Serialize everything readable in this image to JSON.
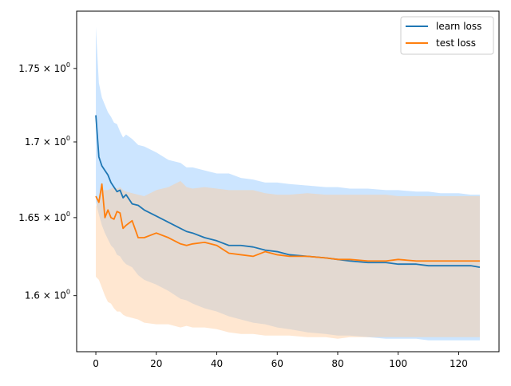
{
  "chart_data": {
    "type": "line",
    "title": "",
    "xlabel": "",
    "ylabel": "",
    "yscale": "log",
    "xlim": [
      -6.35,
      133.35
    ],
    "ylim": [
      1.565,
      1.79
    ],
    "grid": false,
    "legend_position": "top-right",
    "xticks": [
      0,
      20,
      40,
      60,
      80,
      100,
      120
    ],
    "xtick_labels": [
      "0",
      "20",
      "40",
      "60",
      "80",
      "100",
      "120"
    ],
    "yticks": [
      1.6,
      1.65,
      1.7,
      1.75
    ],
    "ytick_labels": [
      {
        "base": "1.6 × 10",
        "exp": "0"
      },
      {
        "base": "1.65 × 10",
        "exp": "0"
      },
      {
        "base": "1.7 × 10",
        "exp": "0"
      },
      {
        "base": "1.75 × 10",
        "exp": "0"
      }
    ],
    "series": [
      {
        "name": "learn loss",
        "color": "#1f77b4",
        "band_color": "#8ec5ff",
        "x": [
          0,
          1,
          2,
          3,
          4,
          5,
          6,
          7,
          8,
          9,
          10,
          12,
          14,
          16,
          20,
          24,
          28,
          30,
          32,
          36,
          40,
          44,
          48,
          52,
          56,
          60,
          64,
          70,
          76,
          80,
          84,
          90,
          96,
          100,
          106,
          110,
          114,
          120,
          124,
          127
        ],
        "values": [
          1.718,
          1.69,
          1.684,
          1.681,
          1.678,
          1.673,
          1.67,
          1.667,
          1.668,
          1.663,
          1.665,
          1.659,
          1.658,
          1.655,
          1.651,
          1.647,
          1.643,
          1.641,
          1.64,
          1.637,
          1.635,
          1.632,
          1.632,
          1.631,
          1.629,
          1.628,
          1.626,
          1.625,
          1.624,
          1.623,
          1.622,
          1.621,
          1.621,
          1.62,
          1.62,
          1.619,
          1.619,
          1.619,
          1.619,
          1.618
        ],
        "upper": [
          1.779,
          1.74,
          1.73,
          1.725,
          1.72,
          1.717,
          1.713,
          1.712,
          1.707,
          1.703,
          1.705,
          1.702,
          1.698,
          1.697,
          1.693,
          1.688,
          1.686,
          1.683,
          1.683,
          1.681,
          1.679,
          1.679,
          1.676,
          1.675,
          1.673,
          1.673,
          1.672,
          1.671,
          1.67,
          1.67,
          1.669,
          1.669,
          1.668,
          1.668,
          1.667,
          1.667,
          1.666,
          1.666,
          1.665,
          1.665
        ],
        "lower": [
          1.66,
          1.652,
          1.645,
          1.64,
          1.636,
          1.632,
          1.63,
          1.626,
          1.625,
          1.622,
          1.62,
          1.618,
          1.613,
          1.61,
          1.607,
          1.603,
          1.598,
          1.597,
          1.595,
          1.592,
          1.59,
          1.587,
          1.585,
          1.583,
          1.582,
          1.58,
          1.579,
          1.577,
          1.576,
          1.575,
          1.575,
          1.574,
          1.573,
          1.573,
          1.573,
          1.572,
          1.572,
          1.572,
          1.572,
          1.572
        ]
      },
      {
        "name": "test loss",
        "color": "#ff7f0e",
        "band_color": "#ffc999",
        "x": [
          0,
          1,
          2,
          3,
          4,
          5,
          6,
          7,
          8,
          9,
          10,
          12,
          14,
          16,
          20,
          24,
          28,
          30,
          32,
          36,
          40,
          44,
          48,
          52,
          56,
          60,
          64,
          70,
          76,
          80,
          84,
          90,
          96,
          100,
          106,
          110,
          114,
          120,
          124,
          127
        ],
        "values": [
          1.664,
          1.66,
          1.672,
          1.65,
          1.655,
          1.65,
          1.649,
          1.654,
          1.653,
          1.643,
          1.645,
          1.648,
          1.637,
          1.637,
          1.64,
          1.637,
          1.633,
          1.632,
          1.633,
          1.634,
          1.632,
          1.627,
          1.626,
          1.625,
          1.628,
          1.626,
          1.625,
          1.625,
          1.624,
          1.623,
          1.623,
          1.622,
          1.622,
          1.623,
          1.622,
          1.622,
          1.622,
          1.622,
          1.622,
          1.622
        ],
        "upper": [
          1.657,
          1.663,
          1.668,
          1.668,
          1.668,
          1.669,
          1.67,
          1.669,
          1.67,
          1.668,
          1.667,
          1.666,
          1.665,
          1.664,
          1.668,
          1.67,
          1.674,
          1.67,
          1.669,
          1.67,
          1.669,
          1.668,
          1.668,
          1.668,
          1.666,
          1.665,
          1.665,
          1.666,
          1.665,
          1.665,
          1.665,
          1.665,
          1.665,
          1.664,
          1.664,
          1.664,
          1.664,
          1.664,
          1.664,
          1.664
        ],
        "lower": [
          1.612,
          1.61,
          1.605,
          1.6,
          1.596,
          1.595,
          1.592,
          1.59,
          1.59,
          1.588,
          1.587,
          1.586,
          1.585,
          1.583,
          1.582,
          1.582,
          1.58,
          1.581,
          1.58,
          1.58,
          1.579,
          1.577,
          1.576,
          1.576,
          1.575,
          1.575,
          1.575,
          1.574,
          1.574,
          1.573,
          1.574,
          1.574,
          1.574,
          1.574,
          1.574,
          1.574,
          1.574,
          1.574,
          1.574,
          1.574
        ]
      }
    ]
  }
}
